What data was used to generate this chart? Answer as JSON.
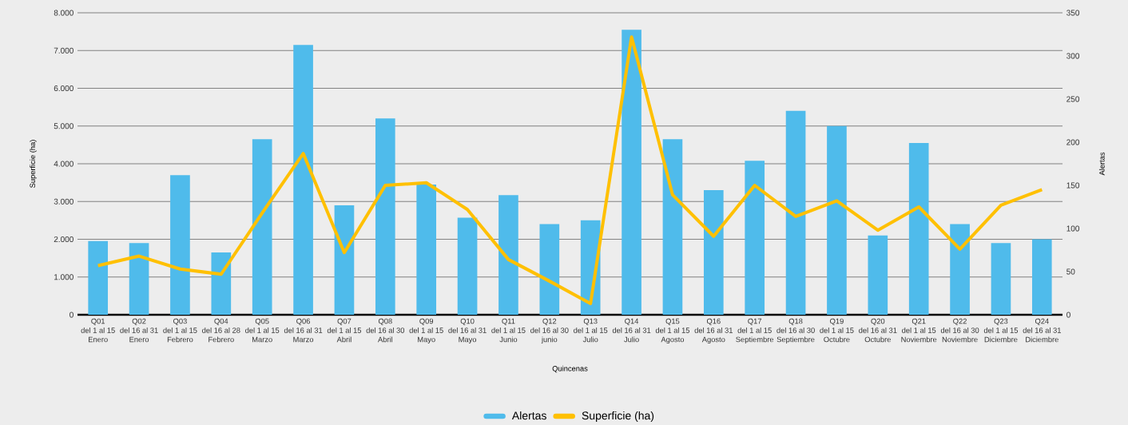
{
  "chart_data": {
    "type": "bar",
    "xlabel": "Quincenas",
    "ylabel": "Superficie (ha)",
    "y2label": "Alertas",
    "categories": [
      "Q01\ndel 1 al 15\nEnero",
      "Q02\ndel 16 al 31\nEnero",
      "Q03\ndel 1 al 15\nFebrero",
      "Q04\ndel 16 al 28\nFebrero",
      "Q05\ndel 1 al 15\nMarzo",
      "Q06\ndel 16 al 31\nMarzo",
      "Q07\ndel 1 al 15\nAbril",
      "Q08\ndel 16 al 30\nAbril",
      "Q09\ndel 1 al 15\nMayo",
      "Q10\ndel 16 al 31\nMayo",
      "Q11\ndel 1 al 15\nJunio",
      "Q12\ndel 16 al 30\njunio",
      "Q13\ndel 1 al 15\nJulio",
      "Q14\ndel 16 al 31\nJulio",
      "Q15\ndel 1 al 15\nAgosto",
      "Q16\ndel 16 al 31\nAgosto",
      "Q17\ndel 1 al 15\nSeptiembre",
      "Q18\ndel 16 al 30\nSeptiembre",
      "Q19\ndel 1 al 15\nOctubre",
      "Q20\ndel 16 al 31\nOctubre",
      "Q21\ndel 1 al 15\nNoviembre",
      "Q22\ndel 16 al 30\nNoviembre",
      "Q23\ndel 1 al 15\nDiciembre",
      "Q24\ndel 16 al 31\nDiciembre"
    ],
    "series": [
      {
        "name": "Alertas",
        "color": "#4fbbeb",
        "values": [
          1950,
          1900,
          3700,
          1650,
          4650,
          7150,
          2900,
          5200,
          3450,
          2570,
          3170,
          2400,
          2500,
          7550,
          4650,
          3300,
          4080,
          5400,
          5000,
          2100,
          4550,
          2400,
          1900,
          2000
        ]
      },
      {
        "name": "Superficie (ha)",
        "type": "line",
        "axis": "y2",
        "color": "#ffc000",
        "values": [
          57,
          68,
          53,
          47,
          118,
          187,
          72,
          150,
          153,
          122,
          64,
          39,
          13,
          322,
          139,
          91,
          150,
          114,
          132,
          98,
          125,
          76,
          127,
          145
        ]
      }
    ],
    "ylim": [
      0,
      8000
    ],
    "yticks": [
      0,
      {
        "value": 1000,
        "label": "1.000"
      },
      {
        "value": 2000,
        "label": "2.000"
      },
      {
        "value": 3000,
        "label": "3.000"
      },
      {
        "value": 4000,
        "label": "4.000"
      },
      {
        "value": 5000,
        "label": "5.000"
      },
      {
        "value": 6000,
        "label": "6.000"
      },
      {
        "value": 7000,
        "label": "7.000"
      },
      {
        "value": 8000,
        "label": "8.000"
      }
    ],
    "y2lim": [
      0,
      350
    ],
    "y2ticks": [
      0,
      50,
      100,
      150,
      200,
      250,
      300,
      350
    ],
    "grid": "y",
    "legend": "bottom"
  }
}
